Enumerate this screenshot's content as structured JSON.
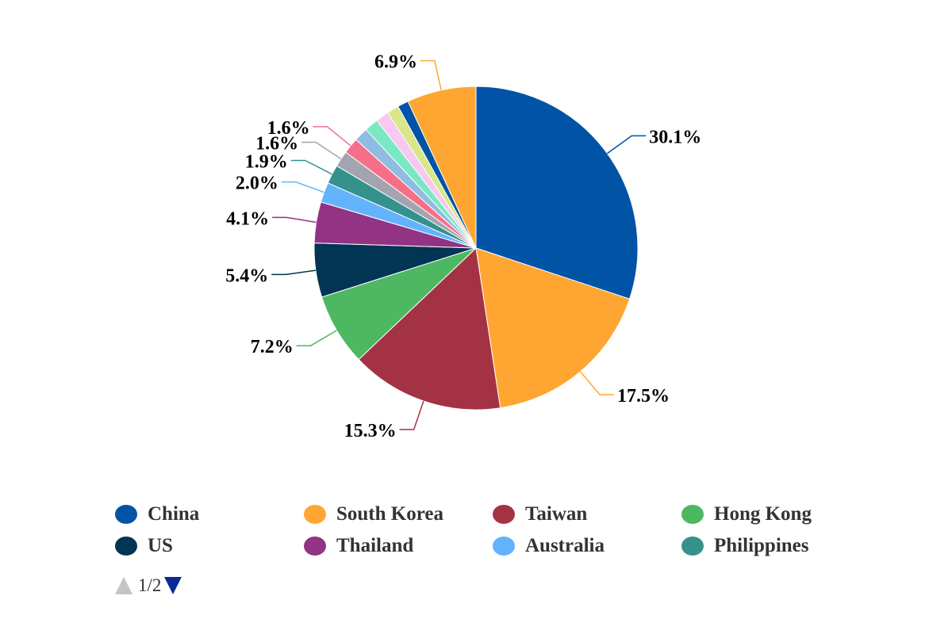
{
  "chart_data": {
    "type": "pie",
    "start_angle_deg": 0,
    "direction": "clockwise",
    "slices": [
      {
        "name": "China",
        "value": 30.1,
        "label": "30.1%",
        "color": "#0053a5"
      },
      {
        "name": "South Korea",
        "value": 17.5,
        "label": "17.5%",
        "color": "#ffa632"
      },
      {
        "name": "Taiwan",
        "value": 15.3,
        "label": "15.3%",
        "color": "#a33344"
      },
      {
        "name": "Hong Kong",
        "value": 7.2,
        "label": "7.2%",
        "color": "#4db861"
      },
      {
        "name": "US",
        "value": 5.4,
        "label": "5.4%",
        "color": "#023453"
      },
      {
        "name": "Thailand",
        "value": 4.1,
        "label": "4.1%",
        "color": "#923384"
      },
      {
        "name": "Australia",
        "value": 2.0,
        "label": "2.0%",
        "color": "#63b3fc"
      },
      {
        "name": "Philippines",
        "value": 1.9,
        "label": "1.9%",
        "color": "#35918c"
      },
      {
        "name": "",
        "value": 1.6,
        "label": "1.6%",
        "color": "#a4a4b0"
      },
      {
        "name": "",
        "value": 1.6,
        "label": "1.6%",
        "color": "#f66f89"
      },
      {
        "name": "",
        "value": 1.4,
        "label": "",
        "color": "#8fbce0"
      },
      {
        "name": "",
        "value": 1.4,
        "label": "",
        "color": "#7be8c4"
      },
      {
        "name": "",
        "value": 1.3,
        "label": "",
        "color": "#f7c8f0"
      },
      {
        "name": "",
        "value": 1.2,
        "label": "",
        "color": "#d9e68a"
      },
      {
        "name": "",
        "value": 1.1,
        "label": "",
        "color": "#0053a5"
      },
      {
        "name": "",
        "value": 6.9,
        "label": "6.9%",
        "color": "#ffa632"
      }
    ],
    "legend": {
      "position": "bottom",
      "page_text": "1/2"
    }
  }
}
